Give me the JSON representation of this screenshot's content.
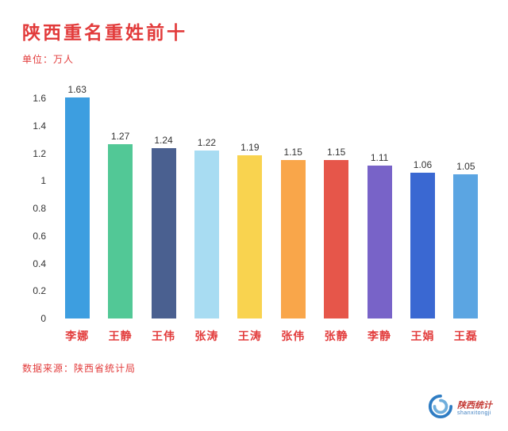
{
  "header": {
    "title": "陕西重名重姓前十",
    "subtitle": "单位：万人"
  },
  "chart_data": {
    "type": "bar",
    "title": "陕西重名重姓前十",
    "xlabel": "",
    "ylabel": "单位：万人",
    "categories": [
      "李娜",
      "王静",
      "王伟",
      "张涛",
      "王涛",
      "张伟",
      "张静",
      "李静",
      "王娟",
      "王磊"
    ],
    "values": [
      1.63,
      1.27,
      1.24,
      1.22,
      1.19,
      1.15,
      1.15,
      1.11,
      1.06,
      1.05
    ],
    "bar_colors": [
      "#3D9EE0",
      "#52C896",
      "#4A6090",
      "#A8DCF2",
      "#F9D34F",
      "#F9A64A",
      "#E6564A",
      "#7863C8",
      "#3A68D2",
      "#5BA5E2"
    ],
    "ylim": [
      0,
      1.7
    ],
    "yticks": [
      0,
      0.2,
      0.4,
      0.6,
      0.8,
      1,
      1.2,
      1.4,
      1.6
    ],
    "grid": false,
    "legend": false,
    "value_label_decimals": 2
  },
  "footer": {
    "source": "数据来源：陕西省统计局"
  },
  "logo": {
    "name": "陕西统计",
    "subtext": "shanxitongji"
  },
  "colors": {
    "accent_red": "#E23B3B",
    "label_dark": "#333333",
    "logo_blue": "#2E7CC3"
  }
}
